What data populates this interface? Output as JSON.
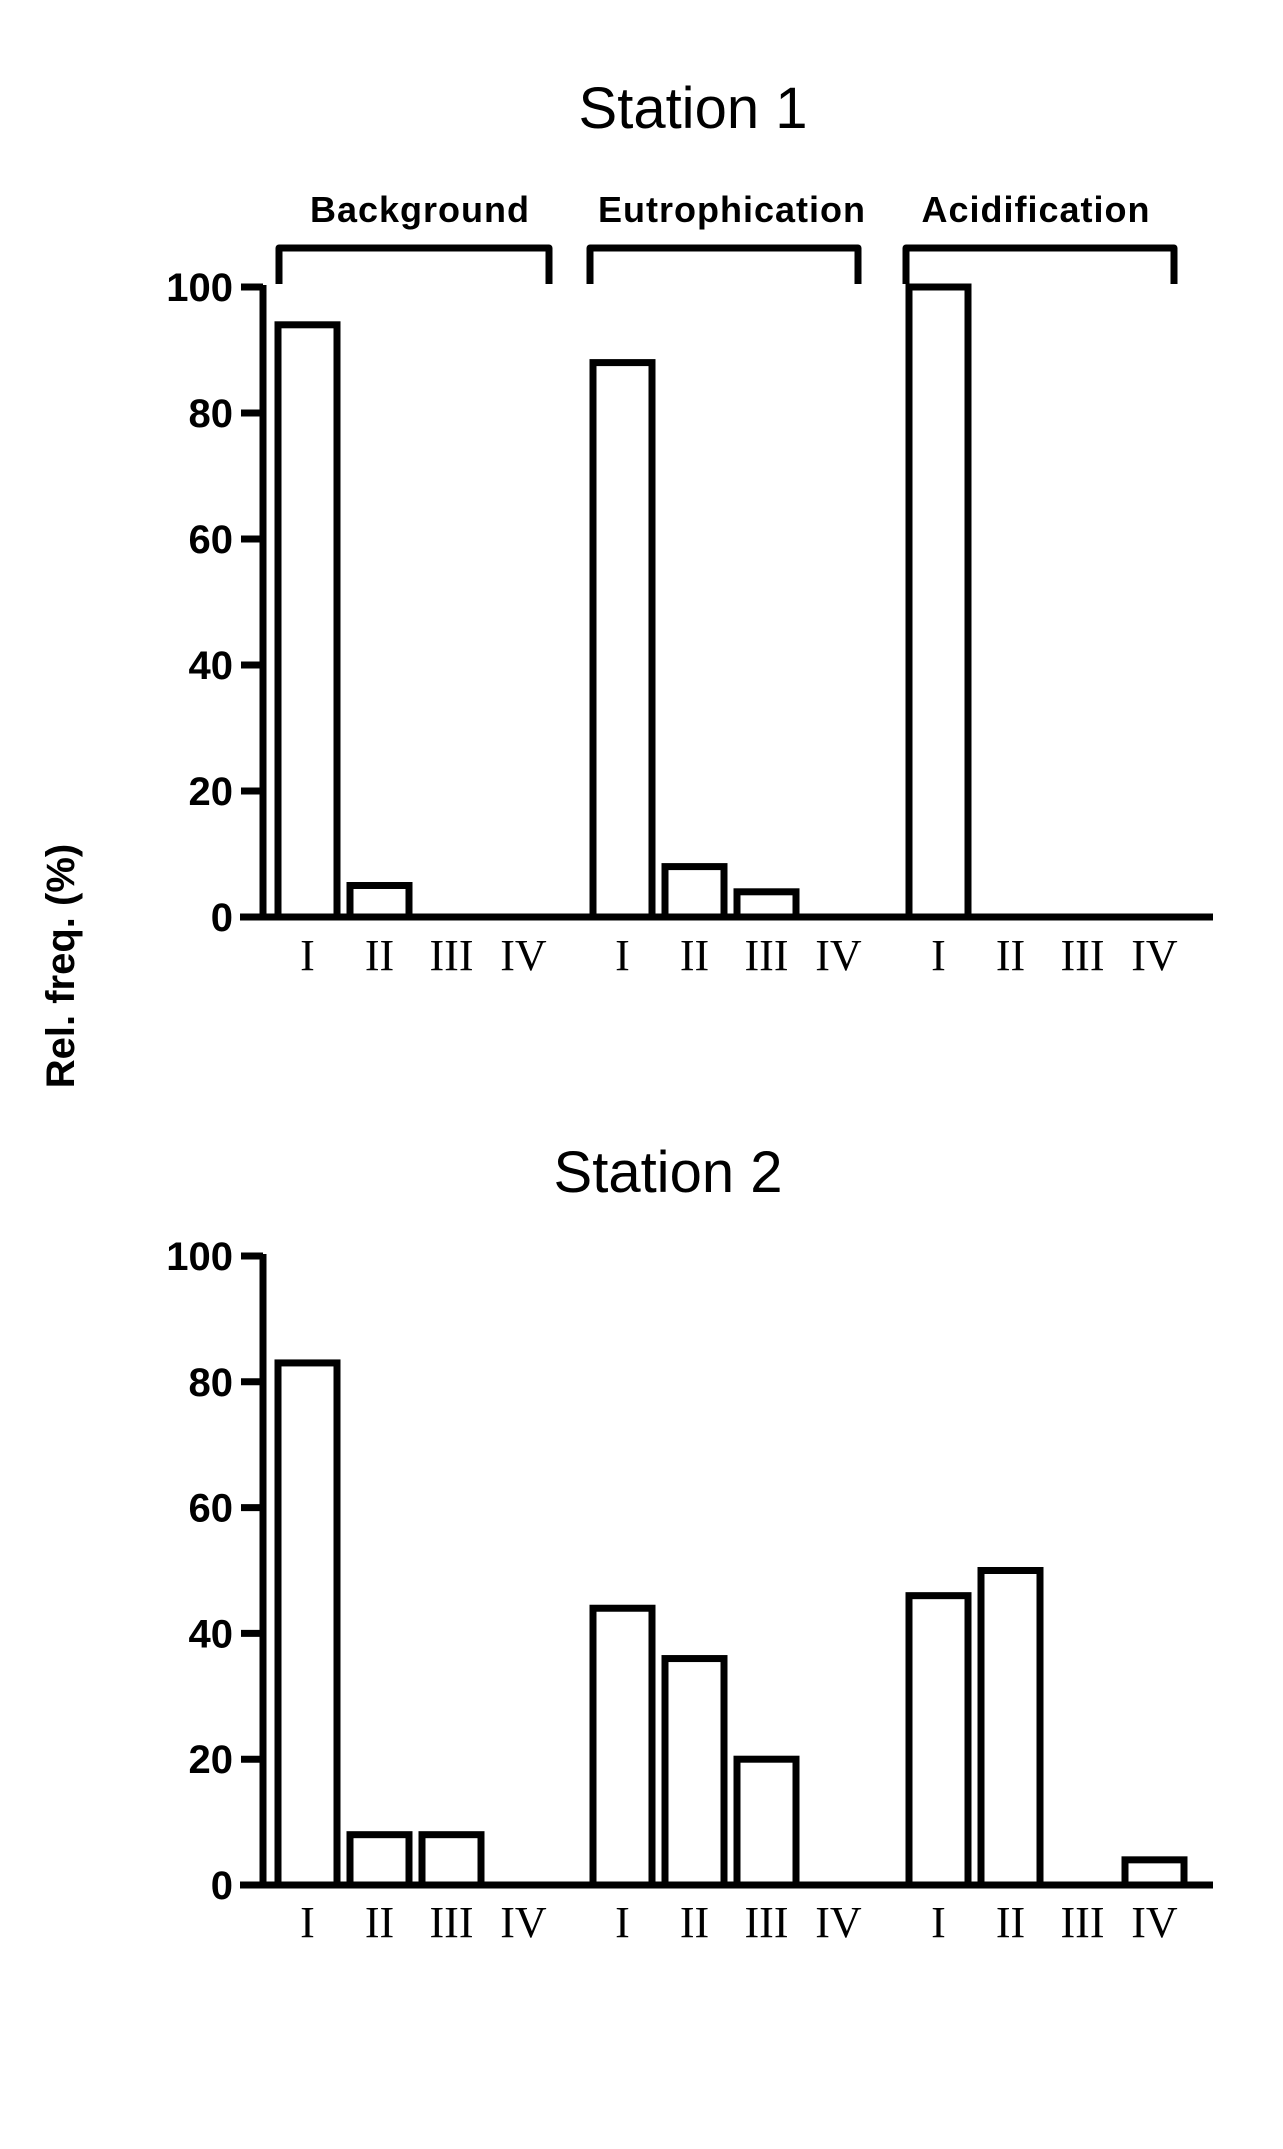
{
  "ylabel": "Rel. freq. (%)",
  "group_labels": [
    "Background",
    "Eutrophication",
    "Acidification"
  ],
  "chart_data": [
    {
      "type": "bar",
      "title": "Station 1",
      "ylim": [
        0,
        100
      ],
      "yticks": [
        0,
        20,
        40,
        60,
        80,
        100
      ],
      "groups": [
        "Background",
        "Eutrophication",
        "Acidification"
      ],
      "categories": [
        "I",
        "II",
        "III",
        "IV"
      ],
      "values": [
        [
          94,
          5,
          0,
          0
        ],
        [
          88,
          8,
          4,
          0
        ],
        [
          100,
          0,
          0,
          0
        ]
      ],
      "grid": false
    },
    {
      "type": "bar",
      "title": "Station 2",
      "ylim": [
        0,
        100
      ],
      "yticks": [
        0,
        20,
        40,
        60,
        80,
        100
      ],
      "groups": [
        "Background",
        "Eutrophication",
        "Acidification"
      ],
      "categories": [
        "I",
        "II",
        "III",
        "IV"
      ],
      "values": [
        [
          83,
          8,
          8,
          0
        ],
        [
          44,
          36,
          20,
          0
        ],
        [
          46,
          50,
          0,
          4
        ]
      ],
      "grid": false
    }
  ]
}
